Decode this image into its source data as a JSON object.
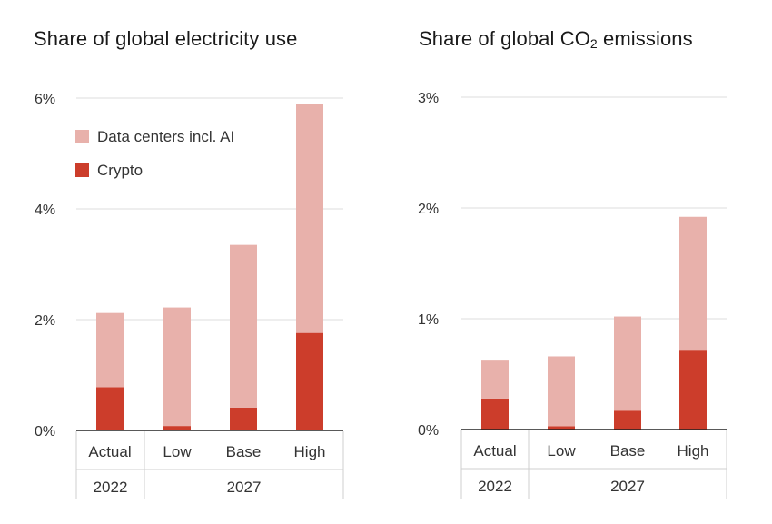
{
  "chart_data": [
    {
      "type": "bar",
      "stacked": true,
      "title": "Share of global electricity use",
      "categories": [
        "Actual",
        "Low",
        "Base",
        "High"
      ],
      "groups": [
        {
          "label": "2022",
          "categories": [
            "Actual"
          ]
        },
        {
          "label": "2027",
          "categories": [
            "Low",
            "Base",
            "High"
          ]
        }
      ],
      "series": [
        {
          "name": "Crypto",
          "color": "#cc3d2b",
          "values": [
            0.78,
            0.08,
            0.41,
            1.76
          ]
        },
        {
          "name": "Data centers incl. AI",
          "color": "#e8b1ab",
          "values": [
            1.34,
            2.14,
            2.94,
            4.14
          ]
        }
      ],
      "ylim": [
        0,
        6
      ],
      "yticks": [
        0,
        2,
        4,
        6
      ],
      "ytick_labels": [
        "0%",
        "2%",
        "4%",
        "6%"
      ],
      "grid": true,
      "legend": "top-left"
    },
    {
      "type": "bar",
      "stacked": true,
      "title": "Share of global CO",
      "title_sub": "2",
      "title_suffix": " emissions",
      "categories": [
        "Actual",
        "Low",
        "Base",
        "High"
      ],
      "groups": [
        {
          "label": "2022",
          "categories": [
            "Actual"
          ]
        },
        {
          "label": "2027",
          "categories": [
            "Low",
            "Base",
            "High"
          ]
        }
      ],
      "series": [
        {
          "name": "Crypto",
          "color": "#cc3d2b",
          "values": [
            0.28,
            0.03,
            0.17,
            0.72
          ]
        },
        {
          "name": "Data centers incl. AI",
          "color": "#e8b1ab",
          "values": [
            0.35,
            0.63,
            0.85,
            1.2
          ]
        }
      ],
      "ylim": [
        0,
        3
      ],
      "yticks": [
        0,
        1,
        2,
        3
      ],
      "ytick_labels": [
        "0%",
        "1%",
        "2%",
        "3%"
      ],
      "grid": true,
      "legend": "none"
    }
  ]
}
